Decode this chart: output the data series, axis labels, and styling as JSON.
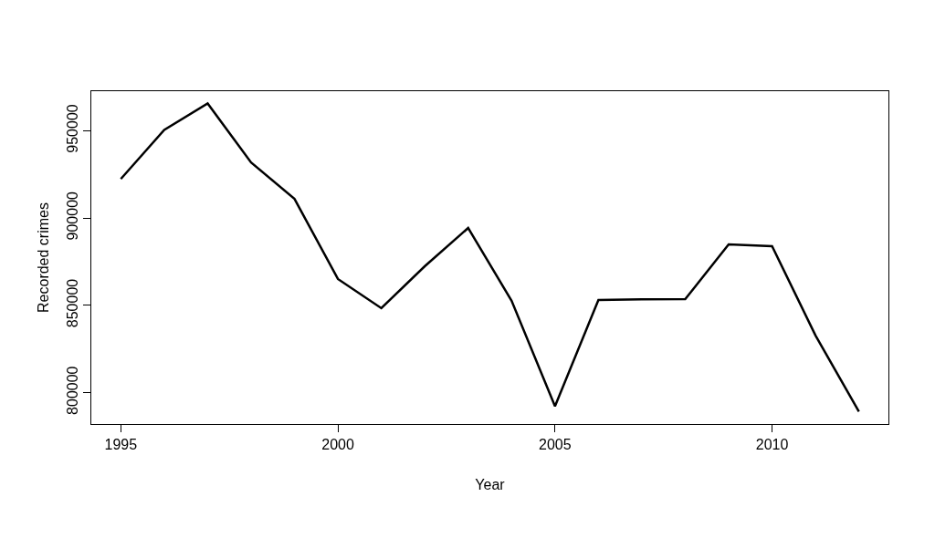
{
  "chart_data": {
    "type": "line",
    "xlabel": "Year",
    "ylabel": "Recorded crimes",
    "x": [
      1995,
      1996,
      1997,
      1998,
      1999,
      2000,
      2001,
      2002,
      2003,
      2004,
      2005,
      2006,
      2007,
      2008,
      2009,
      2010,
      2011,
      2012
    ],
    "series": [
      {
        "color": "#000000",
        "values": [
          922400,
          950500,
          965600,
          931800,
          911000,
          865100,
          848400,
          872400,
          894300,
          852600,
          792200,
          853100,
          853400,
          853600,
          884900,
          883900,
          832800,
          789100
        ]
      }
    ],
    "xlim": [
      1994.32,
      2012.68
    ],
    "ylim": [
      782040,
      972660
    ],
    "xticks": [
      1995,
      2000,
      2005,
      2010
    ],
    "yticks": [
      800000,
      850000,
      900000,
      950000
    ],
    "marker": "none",
    "line_style": "solid"
  }
}
